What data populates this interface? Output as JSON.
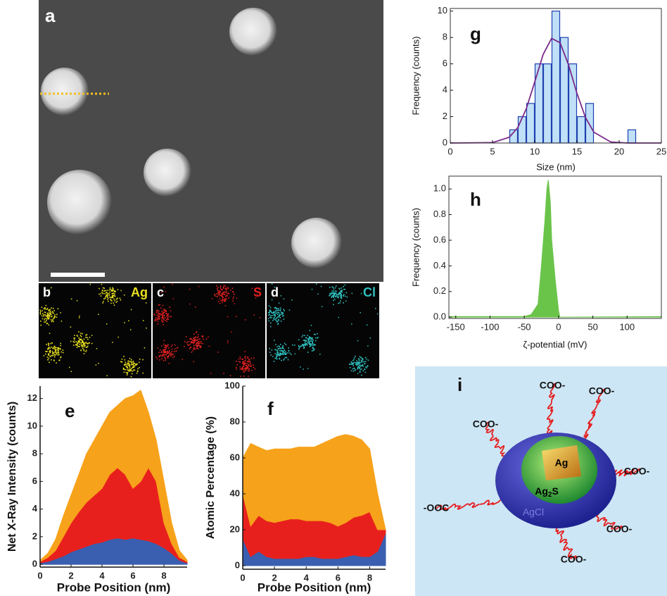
{
  "figure": {
    "a": {
      "label": "a"
    },
    "maps": [
      {
        "label": "b",
        "element": "Ag",
        "color": "#e8e020"
      },
      {
        "label": "c",
        "element": "S",
        "color": "#e02020"
      },
      {
        "label": "d",
        "element": "Cl",
        "color": "#30c0c0"
      }
    ],
    "i": {
      "label": "i",
      "ligands": [
        "COO-",
        "COO-",
        "COO-",
        "COO-",
        "-OOC",
        "COO-",
        "COO-"
      ],
      "core": "Ag",
      "shell": [
        "Ag",
        "2",
        "S"
      ],
      "outer": "AgCl"
    }
  },
  "chart_data": [
    {
      "type": "area",
      "stacked": true,
      "panel_label": "e",
      "x_label": "Probe Position (nm)",
      "y_label": "Net X-Ray Intensity (counts)",
      "x": [
        0,
        0.5,
        1,
        1.5,
        2,
        2.5,
        3,
        3.5,
        4,
        4.5,
        5,
        5.5,
        6,
        6.5,
        7,
        7.5,
        8,
        8.5,
        9,
        9.5
      ],
      "series": [
        {
          "color": "#3a5fb0",
          "values": [
            0.1,
            0.2,
            0.4,
            0.6,
            0.9,
            1.1,
            1.3,
            1.5,
            1.6,
            1.8,
            1.9,
            1.8,
            1.9,
            1.8,
            1.7,
            1.5,
            1.2,
            0.8,
            0.3,
            0.1
          ]
        },
        {
          "color": "#e8201d",
          "values": [
            0.1,
            0.3,
            0.6,
            1.4,
            2.1,
            2.7,
            3.2,
            3.5,
            3.9,
            4.7,
            5.1,
            4.7,
            3.6,
            4.2,
            5.3,
            4.5,
            1.8,
            0.7,
            0.2,
            0.1
          ]
        },
        {
          "color": "#f7a21b",
          "values": [
            0.1,
            0.3,
            0.8,
            1.5,
            2,
            2.7,
            3.5,
            4,
            4.5,
            4.5,
            4.5,
            5.5,
            6.7,
            6.6,
            4,
            3,
            3,
            1.5,
            0.5,
            0.1
          ]
        }
      ],
      "xlim": [
        0,
        9.5
      ],
      "xticks": [
        0,
        2,
        4,
        6,
        8
      ],
      "ylim": [
        -0.2,
        12.9
      ],
      "yticks": [
        0,
        2,
        4,
        6,
        8,
        10,
        12
      ]
    },
    {
      "type": "area",
      "stacked": true,
      "panel_label": "f",
      "x_label": "Probe Position (nm)",
      "y_label": "Atomic Percentage (%)",
      "x": [
        0,
        0.5,
        1,
        1.5,
        2,
        2.5,
        3,
        3.5,
        4,
        4.5,
        5,
        5.5,
        6,
        6.5,
        7,
        7.5,
        8,
        8.5,
        9
      ],
      "series": [
        {
          "color": "#3a5fb0",
          "values": [
            15,
            5,
            8,
            5,
            4,
            4,
            4,
            4,
            5,
            5,
            4,
            4,
            4,
            5,
            6,
            5,
            5,
            8,
            18
          ]
        },
        {
          "color": "#e8201d",
          "values": [
            25,
            17,
            20,
            20,
            20,
            21,
            22,
            22,
            20,
            20,
            21,
            20,
            18,
            19,
            21,
            23,
            25,
            12,
            2
          ]
        },
        {
          "color": "#f7a21b",
          "values": [
            20,
            46,
            38,
            39,
            41,
            40,
            39,
            40,
            41,
            41,
            43,
            46,
            50,
            49,
            45,
            42,
            35,
            20,
            0
          ]
        }
      ],
      "xlim": [
        0,
        9
      ],
      "xticks": [
        0,
        2,
        4,
        6,
        8
      ],
      "ylim": [
        -2,
        100
      ],
      "yticks": [
        0,
        20,
        40,
        60,
        80,
        100
      ]
    },
    {
      "type": "histogram",
      "panel_label": "g",
      "frame": true,
      "x_label": "Size (nm)",
      "y_label": "Frequency (counts)",
      "bins": [
        7,
        8,
        9,
        10,
        11,
        12,
        13,
        14,
        15,
        16,
        17,
        18,
        19,
        20,
        21,
        22
      ],
      "values": [
        1,
        2,
        3,
        6,
        6,
        10,
        8,
        6,
        2,
        3,
        0,
        0,
        0,
        0,
        1
      ],
      "color": "#bfe0f7",
      "edge_color": "#1f3fb0",
      "fit": {
        "color": "#7a2a8a",
        "x": [
          0,
          5,
          7,
          8,
          9,
          10,
          11,
          12,
          13,
          14,
          15,
          16,
          17,
          19,
          21,
          25
        ],
        "values": [
          0,
          0.03,
          0.44,
          1.18,
          2.6,
          4.63,
          6.72,
          7.93,
          7.6,
          5.93,
          3.77,
          1.95,
          0.82,
          0.08,
          0,
          0
        ]
      },
      "xlim": [
        0,
        25
      ],
      "xticks": [
        0,
        5,
        10,
        15,
        20,
        25
      ],
      "ylim": [
        0,
        10.2
      ],
      "yticks": [
        0,
        2,
        4,
        6,
        8,
        10
      ]
    },
    {
      "type": "area",
      "panel_label": "h",
      "frame": true,
      "x_label": "ζ-potential (mV)",
      "y_label": "Frequency (counts)",
      "x": [
        -160,
        -150,
        -50,
        -40,
        -30,
        -25,
        -20,
        -17,
        -15,
        -12,
        -10,
        -5,
        0,
        2,
        150
      ],
      "series": [
        {
          "color": "#6ac44a",
          "values": [
            0.005,
            0.005,
            0.005,
            0.02,
            0.1,
            0.4,
            0.75,
            1.0,
            1.07,
            0.9,
            0.6,
            0.3,
            0.05,
            0,
            0.005
          ]
        }
      ],
      "xlim": [
        -160,
        150
      ],
      "xticks": [
        -150,
        -100,
        -50,
        0,
        50,
        100
      ],
      "ylim": [
        -0.01,
        1.1
      ],
      "yticks": [
        {
          "value": 0,
          "label": "0.0"
        },
        {
          "value": 0.2,
          "label": "0.2"
        },
        {
          "value": 0.4,
          "label": "0.4"
        },
        {
          "value": 0.6,
          "label": "0.6"
        },
        {
          "value": 0.8,
          "label": "0.8"
        },
        {
          "value": 1.0,
          "label": "1.0"
        }
      ]
    }
  ]
}
